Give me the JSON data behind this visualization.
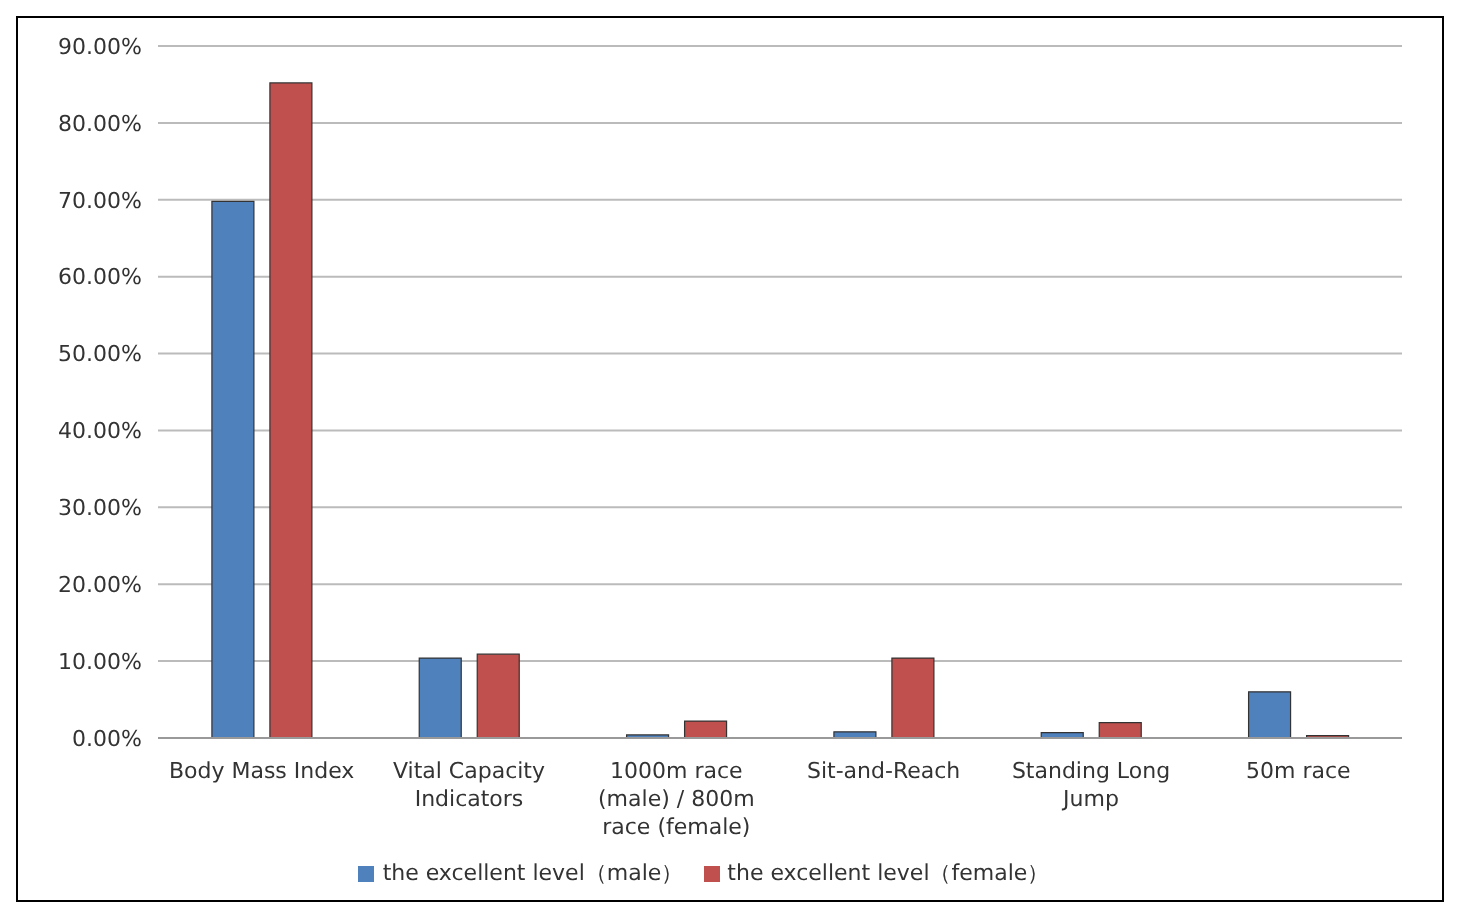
{
  "chart_data": {
    "type": "bar",
    "categories": [
      "Body Mass Index",
      "Vital Capacity Indicators",
      "1000m race (male) / 800m race (female)",
      "Sit-and-Reach",
      "Standing Long Jump",
      "50m race"
    ],
    "series": [
      {
        "name": "the excellent level（male）",
        "color": "#4f81bd",
        "values": [
          69.8,
          10.4,
          0.4,
          0.8,
          0.7,
          6.0
        ]
      },
      {
        "name": "the excellent level（female）",
        "color": "#c0504d",
        "values": [
          85.2,
          10.9,
          2.2,
          10.4,
          2.0,
          0.3
        ]
      }
    ],
    "ylim": [
      0,
      90
    ],
    "yticks": [
      {
        "value": 0,
        "label": "0.00%"
      },
      {
        "value": 10,
        "label": "10.00%"
      },
      {
        "value": 20,
        "label": "20.00%"
      },
      {
        "value": 30,
        "label": "30.00%"
      },
      {
        "value": 40,
        "label": "40.00%"
      },
      {
        "value": 50,
        "label": "50.00%"
      },
      {
        "value": 60,
        "label": "60.00%"
      },
      {
        "value": 70,
        "label": "70.00%"
      },
      {
        "value": 80,
        "label": "80.00%"
      },
      {
        "value": 90,
        "label": "90.00%"
      }
    ],
    "grid": "y",
    "legend": "bottom"
  }
}
